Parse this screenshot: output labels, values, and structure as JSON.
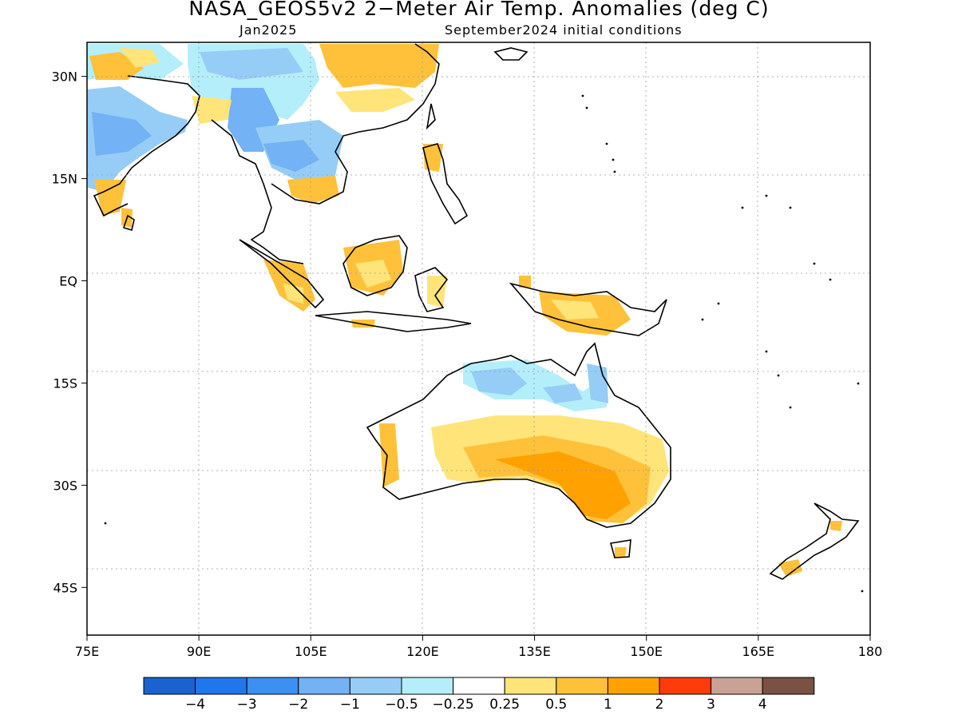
{
  "title": "NASA_GEOS5v2 2−Meter Air Temp. Anomalies (deg C)",
  "subtitle_left": "Jan2025",
  "subtitle_right": "September2024 initial conditions",
  "map": {
    "lon_range": [
      75,
      180
    ],
    "lat_range": [
      -52,
      35
    ],
    "x_ticks": [
      "75E",
      "90E",
      "105E",
      "120E",
      "135E",
      "150E",
      "165E",
      "180"
    ],
    "y_ticks": [
      "30N",
      "15N",
      "EQ",
      "15S",
      "30S",
      "45S"
    ]
  },
  "colorbar": {
    "colors": [
      "#1a63cf",
      "#2177ea",
      "#3b90f0",
      "#72b2f5",
      "#96cdf7",
      "#b4eefa",
      "#ffffff",
      "#ffe47a",
      "#ffc13a",
      "#ffa100",
      "#ff3a0b",
      "#c9a294",
      "#7a5143"
    ],
    "labels": [
      "−4",
      "−3",
      "−2",
      "−1",
      "−0.5",
      "−0.25",
      "0.25",
      "0.5",
      "1",
      "2",
      "3",
      "4"
    ]
  }
}
